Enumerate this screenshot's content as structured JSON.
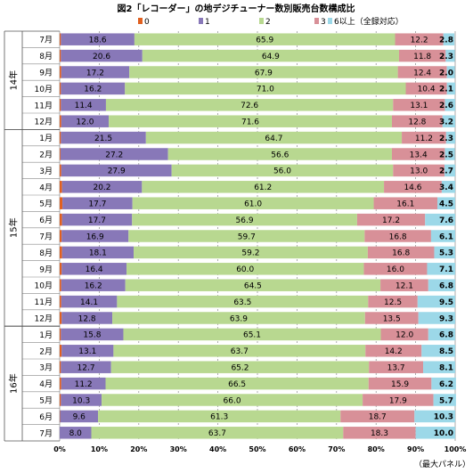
{
  "chart_data": {
    "type": "bar",
    "orientation": "horizontal",
    "stacked": true,
    "percent": true,
    "title": "図2「レコーダー」の地デジチューナー数別販売台数構成比",
    "note": "（最大パネル）",
    "xlim": [
      0,
      100
    ],
    "x_ticks": [
      "0%",
      "10%",
      "20%",
      "30%",
      "40%",
      "50%",
      "60%",
      "70%",
      "80%",
      "90%",
      "100%"
    ],
    "legend_position": "top-right",
    "colors": [
      "#e06020",
      "#8878b8",
      "#b8d890",
      "#d89098",
      "#9cd8e8"
    ],
    "groups": [
      {
        "label": "14年",
        "months": [
          "7月",
          "8月",
          "9月",
          "10月",
          "11月",
          "12月"
        ]
      },
      {
        "label": "15年",
        "months": [
          "1月",
          "2月",
          "3月",
          "4月",
          "5月",
          "6月",
          "7月",
          "8月",
          "9月",
          "10月",
          "11月",
          "12月"
        ]
      },
      {
        "label": "16年",
        "months": [
          "1月",
          "2月",
          "3月",
          "4月",
          "5月",
          "6月",
          "7月"
        ]
      }
    ],
    "categories": [
      "14年 7月",
      "14年 8月",
      "14年 9月",
      "14年 10月",
      "14年 11月",
      "14年 12月",
      "15年 1月",
      "15年 2月",
      "15年 3月",
      "15年 4月",
      "15年 5月",
      "15年 6月",
      "15年 7月",
      "15年 8月",
      "15年 9月",
      "15年 10月",
      "15年 11月",
      "15年 12月",
      "16年 1月",
      "16年 2月",
      "16年 3月",
      "16年 4月",
      "16年 5月",
      "16年 6月",
      "16年 7月"
    ],
    "series": [
      {
        "name": "0",
        "values": [
          0.3,
          0.3,
          0.4,
          0.3,
          0.3,
          0.4,
          0.3,
          0.2,
          0.4,
          0.6,
          0.7,
          0.6,
          0.5,
          0.6,
          0.5,
          0.4,
          0.4,
          0.5,
          0.3,
          0.5,
          0.3,
          0.4,
          0.3,
          0.1,
          0.0
        ]
      },
      {
        "name": "1",
        "values": [
          18.6,
          20.6,
          17.2,
          16.2,
          11.4,
          12.0,
          21.5,
          27.2,
          27.9,
          20.2,
          17.7,
          17.7,
          16.9,
          18.1,
          16.4,
          16.2,
          14.1,
          12.8,
          15.8,
          13.1,
          12.7,
          11.2,
          10.3,
          9.6,
          8.0
        ]
      },
      {
        "name": "2",
        "values": [
          65.9,
          64.9,
          67.9,
          71.0,
          72.6,
          71.6,
          64.7,
          56.6,
          56.0,
          61.2,
          61.0,
          56.9,
          59.7,
          59.2,
          60.0,
          64.5,
          63.5,
          63.9,
          65.1,
          63.7,
          65.2,
          66.5,
          66.0,
          61.3,
          63.7
        ]
      },
      {
        "name": "3",
        "values": [
          12.2,
          11.8,
          12.4,
          10.4,
          13.1,
          12.8,
          11.2,
          13.4,
          13.0,
          14.6,
          16.1,
          17.2,
          16.8,
          16.8,
          16.0,
          12.1,
          12.5,
          13.5,
          12.0,
          14.2,
          13.7,
          15.9,
          17.9,
          18.7,
          18.3
        ]
      },
      {
        "name": "6以上（全録対応）",
        "values": [
          2.8,
          2.3,
          2.0,
          2.1,
          2.6,
          3.2,
          2.3,
          2.5,
          2.7,
          3.4,
          4.5,
          7.6,
          6.1,
          5.3,
          7.1,
          6.8,
          9.5,
          9.3,
          6.8,
          8.5,
          8.1,
          6.2,
          5.7,
          10.3,
          10.0
        ]
      }
    ]
  }
}
